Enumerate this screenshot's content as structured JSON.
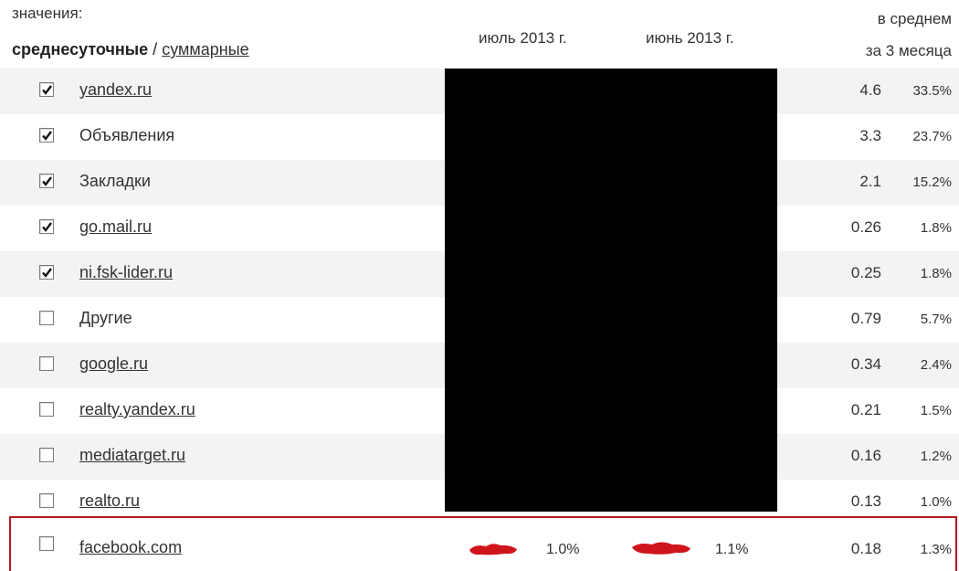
{
  "header": {
    "values_label": "значения:",
    "mode_active": "среднесуточные",
    "mode_separator": " / ",
    "mode_link": "суммарные",
    "col_july": "июль 2013 г.",
    "col_june": "июнь 2013 г.",
    "col_avg_line1": "в среднем",
    "col_avg_line2": "за 3 месяца"
  },
  "rows": [
    {
      "name": "yandex.ru",
      "checked": true,
      "link": true,
      "avg": "4.6",
      "pct": "33.5%"
    },
    {
      "name": "Объявления",
      "checked": true,
      "link": false,
      "avg": "3.3",
      "pct": "23.7%"
    },
    {
      "name": "Закладки",
      "checked": true,
      "link": false,
      "avg": "2.1",
      "pct": "15.2%"
    },
    {
      "name": "go.mail.ru",
      "checked": true,
      "link": true,
      "avg": "0.26",
      "pct": "1.8%"
    },
    {
      "name": "ni.fsk-lider.ru",
      "checked": true,
      "link": true,
      "avg": "0.25",
      "pct": "1.8%"
    },
    {
      "name": "Другие",
      "checked": false,
      "link": false,
      "avg": "0.79",
      "pct": "5.7%"
    },
    {
      "name": "google.ru",
      "checked": false,
      "link": true,
      "avg": "0.34",
      "pct": "2.4%"
    },
    {
      "name": "realty.yandex.ru",
      "checked": false,
      "link": true,
      "avg": "0.21",
      "pct": "1.5%"
    },
    {
      "name": "mediatarget.ru",
      "checked": false,
      "link": true,
      "avg": "0.16",
      "pct": "1.2%"
    },
    {
      "name": "realto.ru",
      "checked": false,
      "link": true,
      "avg": "0.13",
      "pct": "1.0%"
    }
  ],
  "highlight_row": {
    "name": "facebook.com",
    "checked": false,
    "july_pct": "1.0%",
    "june_pct": "1.1%",
    "avg": "0.18",
    "pct": "1.3%"
  },
  "colors": {
    "highlight_border": "#b51a21",
    "scribble": "#d0141c",
    "alt_row": "#f3f3f3"
  }
}
